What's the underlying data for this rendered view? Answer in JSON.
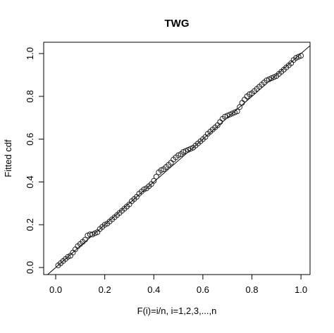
{
  "chart_data": {
    "type": "scatter",
    "title": "TWG",
    "x_label": "F(i)=i/n, i=1,2,3,...,n",
    "y_label": "Fitted cdf",
    "x": [
      0.01,
      0.02,
      0.03,
      0.04,
      0.05,
      0.06,
      0.07,
      0.08,
      0.09,
      0.1,
      0.11,
      0.12,
      0.13,
      0.14,
      0.15,
      0.16,
      0.17,
      0.18,
      0.19,
      0.2,
      0.21,
      0.22,
      0.23,
      0.24,
      0.25,
      0.26,
      0.27,
      0.28,
      0.29,
      0.3,
      0.31,
      0.32,
      0.33,
      0.34,
      0.35,
      0.36,
      0.37,
      0.38,
      0.39,
      0.4,
      0.41,
      0.42,
      0.43,
      0.44,
      0.45,
      0.46,
      0.47,
      0.48,
      0.49,
      0.5,
      0.51,
      0.52,
      0.53,
      0.54,
      0.55,
      0.56,
      0.57,
      0.58,
      0.59,
      0.6,
      0.61,
      0.62,
      0.63,
      0.64,
      0.65,
      0.66,
      0.67,
      0.68,
      0.69,
      0.7,
      0.71,
      0.72,
      0.73,
      0.74,
      0.75,
      0.76,
      0.77,
      0.78,
      0.79,
      0.8,
      0.81,
      0.82,
      0.83,
      0.84,
      0.85,
      0.86,
      0.87,
      0.88,
      0.89,
      0.9,
      0.91,
      0.92,
      0.93,
      0.94,
      0.95,
      0.96,
      0.97,
      0.98,
      0.99,
      1.0
    ],
    "values": [
      0.01,
      0.02,
      0.03,
      0.04,
      0.05,
      0.055,
      0.07,
      0.085,
      0.1,
      0.11,
      0.12,
      0.13,
      0.15,
      0.155,
      0.155,
      0.16,
      0.165,
      0.18,
      0.19,
      0.2,
      0.205,
      0.215,
      0.225,
      0.235,
      0.245,
      0.255,
      0.265,
      0.275,
      0.285,
      0.295,
      0.31,
      0.32,
      0.33,
      0.345,
      0.355,
      0.365,
      0.37,
      0.38,
      0.39,
      0.405,
      0.425,
      0.445,
      0.455,
      0.46,
      0.47,
      0.48,
      0.49,
      0.505,
      0.515,
      0.525,
      0.53,
      0.54,
      0.545,
      0.55,
      0.555,
      0.56,
      0.57,
      0.58,
      0.59,
      0.6,
      0.61,
      0.625,
      0.635,
      0.645,
      0.655,
      0.665,
      0.68,
      0.695,
      0.705,
      0.71,
      0.715,
      0.72,
      0.725,
      0.73,
      0.75,
      0.77,
      0.785,
      0.8,
      0.81,
      0.815,
      0.825,
      0.835,
      0.845,
      0.855,
      0.865,
      0.875,
      0.88,
      0.885,
      0.89,
      0.895,
      0.905,
      0.915,
      0.925,
      0.935,
      0.945,
      0.955,
      0.97,
      0.98,
      0.985,
      0.99
    ],
    "color": "#222222",
    "xlim": [
      -0.049,
      1.037
    ],
    "ylim": [
      -0.033,
      1.053
    ],
    "xticks": [
      {
        "value": 0,
        "label": "0.0"
      },
      0.2,
      0.4,
      0.6,
      0.8,
      {
        "value": 1,
        "label": "1.0"
      }
    ],
    "yticks": [
      {
        "value": 0,
        "label": "0.0"
      },
      0.2,
      0.4,
      0.6,
      0.8,
      {
        "value": 1,
        "label": "1.0"
      }
    ]
  }
}
